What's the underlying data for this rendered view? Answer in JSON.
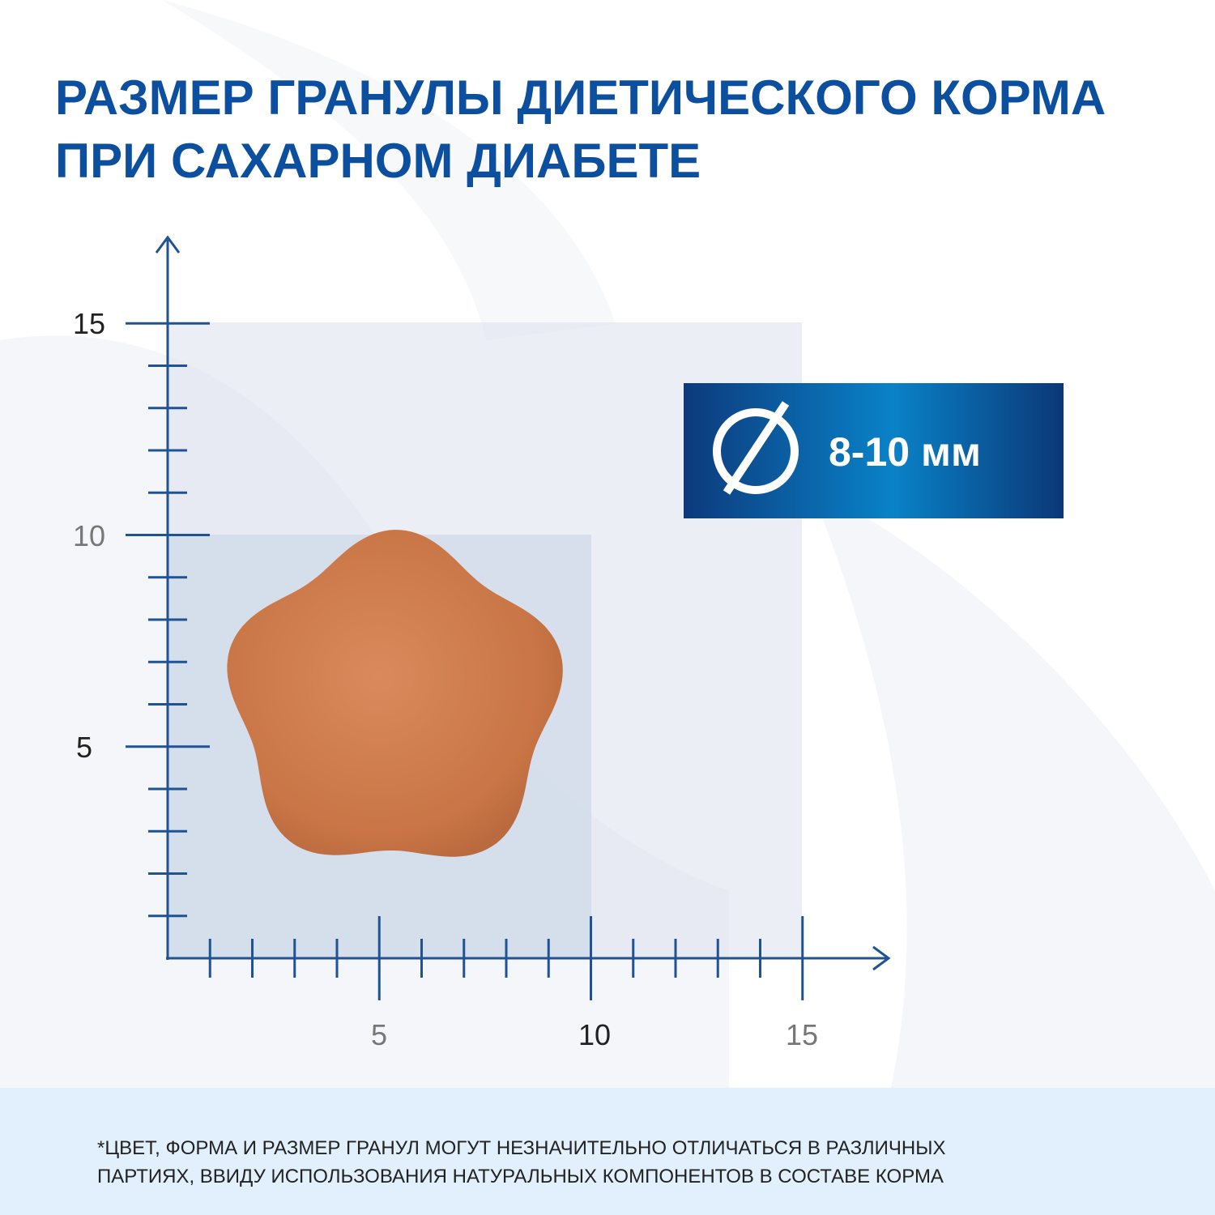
{
  "header": {
    "title_lines": [
      "РАЗМЕР ГРАНУЛЫ ДИЕТИЧЕСКОГО КОРМА",
      "ПРИ САХАРНОМ ДИАБЕТЕ"
    ]
  },
  "scale": {
    "y_labels": [
      "15",
      "10",
      "5"
    ],
    "x_labels": [
      "5",
      "10",
      "15"
    ]
  },
  "badge": {
    "text": "8-10 мм"
  },
  "footnote": {
    "lines": [
      "*ЦВЕТ, ФОРМА И РАЗМЕР ГРАНУЛ МОГУТ НЕЗНАЧИТЕЛЬНО ОТЛИЧАТЬСЯ  В РАЗЛИЧНЫХ",
      "ПАРТИЯХ, ВВИДУ ИСПОЛЬЗОВАНИЯ НАТУРАЛЬНЫХ КОМПОНЕНТОВ В СОСТАВЕ  КОРМА"
    ]
  }
}
